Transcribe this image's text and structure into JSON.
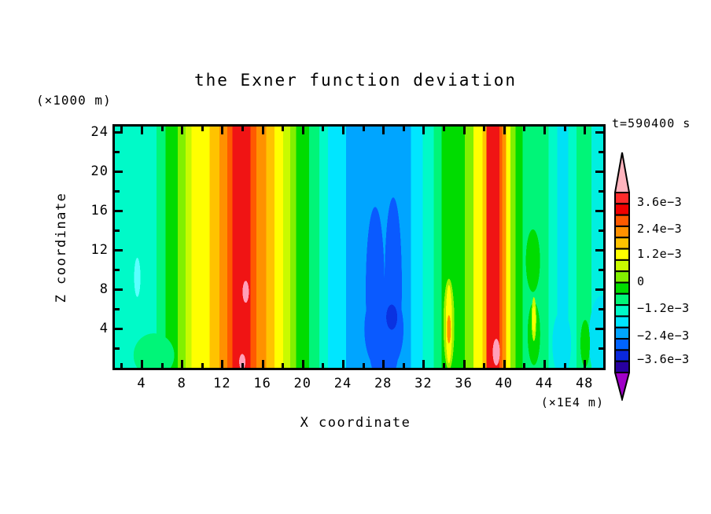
{
  "title": "the Exner function deviation",
  "timestamp": "t=590400 s",
  "y_axis": {
    "label": "Z coordinate",
    "unit": "(×1000 m)",
    "major_ticks": [
      24,
      20,
      16,
      12,
      8,
      4
    ],
    "minor_ticks": [
      22,
      18,
      14,
      10,
      6,
      2
    ]
  },
  "x_axis": {
    "label": "X coordinate",
    "unit": "(×1E4 m)",
    "major_ticks": [
      4,
      8,
      12,
      16,
      20,
      24,
      28,
      32,
      36,
      40,
      44,
      48
    ],
    "minor_ticks": [
      2,
      6,
      10,
      14,
      18,
      22,
      26,
      30,
      34,
      38,
      42,
      46
    ]
  },
  "colorbar": {
    "labels": [
      "3.6e−3",
      "2.4e−3",
      "1.2e−3",
      "0",
      "−1.2e−3",
      "−2.4e−3",
      "−3.6e−3"
    ],
    "label_y_centers": [
      257,
      291,
      323,
      358,
      392,
      427,
      457
    ],
    "segment_colors": [
      "#FF2B2B",
      "#F00000",
      "#FF5A00",
      "#FF9100",
      "#FFC300",
      "#FFFF00",
      "#C8FA00",
      "#82F000",
      "#00DC00",
      "#00F578",
      "#00FAC8",
      "#00E6FF",
      "#00A5FF",
      "#0064FF",
      "#0A28DC",
      "#2800A0"
    ],
    "top_arrow_color": "#FFB4BE",
    "bottom_arrow_color": "#A000C8"
  },
  "chart_data": {
    "type": "heatmap",
    "subtype": "filled-contour",
    "title": "the Exner function deviation",
    "xlabel": "X coordinate",
    "x_unit": "(×1E4 m)",
    "ylabel": "Z coordinate",
    "y_unit": "(×1000 m)",
    "time_annotation": "t=590400 s",
    "xlim": [
      1,
      50
    ],
    "ylim": [
      0,
      24.8
    ],
    "x_tick_step": 4,
    "z_tick_step": 4,
    "contour_interval": 0.0006,
    "value_range_approx": [
      -0.0042,
      0.0042
    ],
    "colorbar_labeled_levels": [
      0.0036,
      0.0024,
      0.0012,
      0,
      -0.0012,
      -0.0024,
      -0.0036
    ],
    "out_of_range_high_color": "pink arrow (> max)",
    "out_of_range_low_color": "violet arrow (< min)",
    "legend_position": "right vertical colorbar with arrow ends",
    "grid": false,
    "features": [
      {
        "desc": "weakly negative cyan/turquoise background (≈ −0.3e−3 to −1.2e−3) over x≈1–5, 21–24, 32–33, 44–50"
      },
      {
        "desc": "positive band green→yellow (≈ +0.3e−3 to +2e−3) over x≈6–11, widening toward bottom"
      },
      {
        "desc": "strong positive column x≈12.5–15, red ≈ +3.6e−3 to +4.2e−3, pink extrema > +4.2e−3 at (x≈14, z≈8) and (x≈14, z≈0.5)"
      },
      {
        "desc": "positive yellow/orange flanks decaying to green over x≈15–20"
      },
      {
        "desc": "broad negative cell x≈24–31 (sky blue ≈ −1.8e−3 to −2.4e−3) with royal-blue cores ≈ −2.4e−3 to −3e−3 peaking at (x≈27, z≈16) and (x≈29, z≈17), minimum ≈ −3.3e−3 near (x≈29, z≈5)"
      },
      {
        "desc": "positive green band x≈34–36 with embedded yellow/orange finger near (x≈34.6, z≈0–8)"
      },
      {
        "desc": "strong positive column x≈38.4–39.7, red with pink extremum > +4.2e−3 near (x≈39.3, z≈1.5)"
      },
      {
        "desc": "weak positive spring-green region x≈42–45 and 47.5–49 with green fingers near x≈43 and x≈48.3"
      },
      {
        "desc": "weak negative cyan fingers near bottom at x≈46 and x≈50"
      }
    ],
    "band_values_mid_height_e3": {
      "x_band_edges": [
        1,
        5.3,
        6.2,
        7.4,
        8.2,
        8.8,
        10.6,
        11.6,
        12.4,
        12.9,
        14.7,
        15.3,
        16.3,
        17.1,
        18.0,
        18.7,
        19.3,
        20.6,
        21.6,
        22.5,
        24.3,
        30.8,
        32.0,
        33.1,
        33.9,
        36.2,
        37.1,
        38.0,
        38.4,
        39.7,
        40.0,
        40.4,
        40.8,
        41.3,
        42.0,
        44.6,
        45.5,
        46.6,
        47.4,
        48.9,
        50.1
      ],
      "approx_values": [
        -0.9,
        -0.3,
        0.3,
        0.9,
        1.2,
        1.8,
        2.1,
        2.7,
        3.3,
        3.9,
        3.3,
        2.7,
        2.1,
        1.8,
        1.2,
        0.9,
        0.3,
        -0.3,
        -0.9,
        -1.5,
        -2.1,
        -1.5,
        -0.9,
        -0.3,
        0.3,
        0.9,
        1.8,
        2.1,
        3.9,
        3.3,
        2.7,
        1.8,
        0.9,
        0.3,
        -0.3,
        -0.9,
        -1.5,
        -0.9,
        -0.3,
        -1.2
      ]
    }
  }
}
